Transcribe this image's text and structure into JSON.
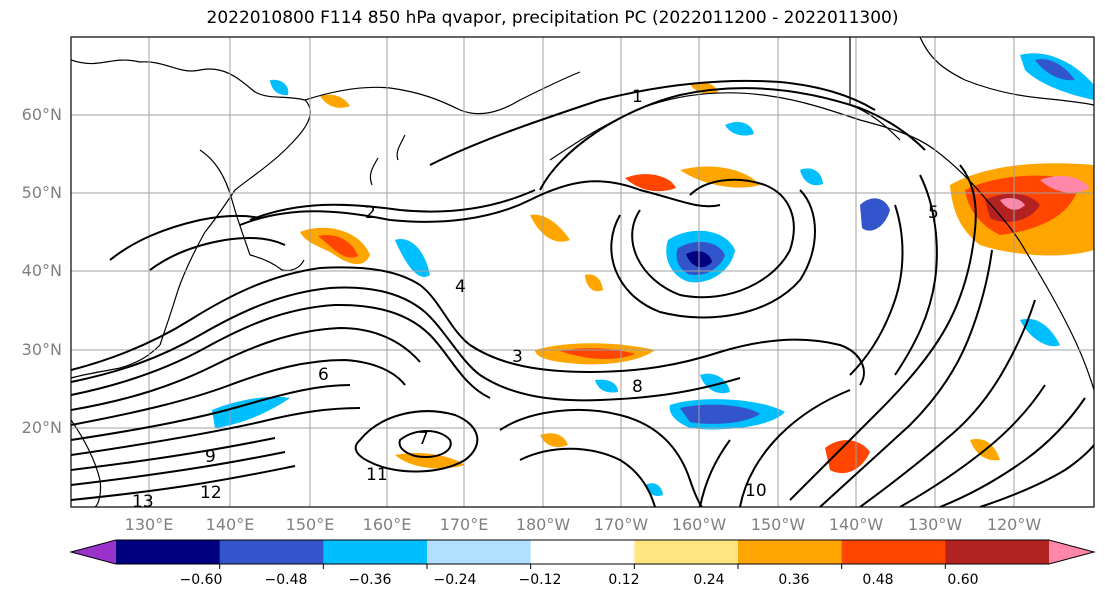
{
  "title": "2022010800 F114 850 hPa qvapor, precipitation PC (2022011200 - 2022011300)",
  "map": {
    "lat_labels": [
      "60°N",
      "50°N",
      "40°N",
      "30°N",
      "20°N"
    ],
    "lon_labels": [
      "130°E",
      "140°E",
      "150°E",
      "160°E",
      "170°E",
      "180°W",
      "170°W",
      "160°W",
      "150°W",
      "140°W",
      "130°W",
      "120°W"
    ],
    "grid": true,
    "contour_labels": [
      "1",
      "2",
      "3",
      "4",
      "5",
      "6",
      "7",
      "8",
      "9",
      "10",
      "11",
      "12",
      "13"
    ]
  },
  "colorbar": {
    "ticks": [
      "−0.60",
      "−0.48",
      "−0.36",
      "−0.24",
      "−0.12",
      "0.12",
      "0.24",
      "0.36",
      "0.48",
      "0.60"
    ],
    "colors": [
      "#9933cc",
      "#000080",
      "#3355cc",
      "#00bfff",
      "#b0e0ff",
      "#ffffff",
      "#ffe680",
      "#ffa500",
      "#ff4500",
      "#b22222",
      "#ff88aa"
    ]
  }
}
